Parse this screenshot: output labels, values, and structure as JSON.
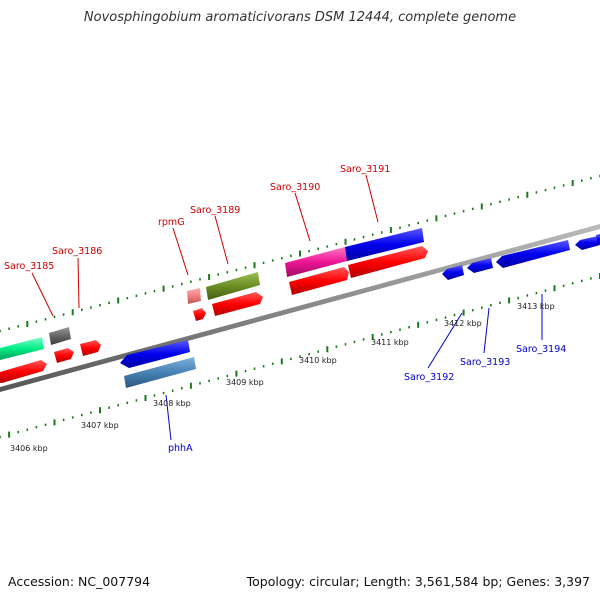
{
  "title": "Novosphingobium aromaticivorans DSM 12444, complete genome",
  "footer": {
    "accession": "Accession: NC_007794",
    "stats": "Topology: circular; Length: 3,561,584 bp; Genes: 3,397"
  },
  "colors": {
    "label_forward": "#cc0000",
    "label_reverse": "#0000cc",
    "tick": "#1a7a1a",
    "backbone": "#8a8a8a"
  },
  "kbp_labels": [
    "3406 kbp",
    "3407 kbp",
    "3408 kbp",
    "3409 kbp",
    "3410 kbp",
    "3411 kbp",
    "3412 kbp",
    "3413 kbp"
  ],
  "genes_upper": [
    {
      "label": "Saro_3185"
    },
    {
      "label": "Saro_3186"
    },
    {
      "label": "rpmG"
    },
    {
      "label": "Saro_3189"
    },
    {
      "label": "Saro_3190"
    },
    {
      "label": "Saro_3191"
    }
  ],
  "genes_lower": [
    {
      "label": "phhA"
    },
    {
      "label": "Saro_3192"
    },
    {
      "label": "Saro_3193"
    },
    {
      "label": "Saro_3194"
    }
  ]
}
